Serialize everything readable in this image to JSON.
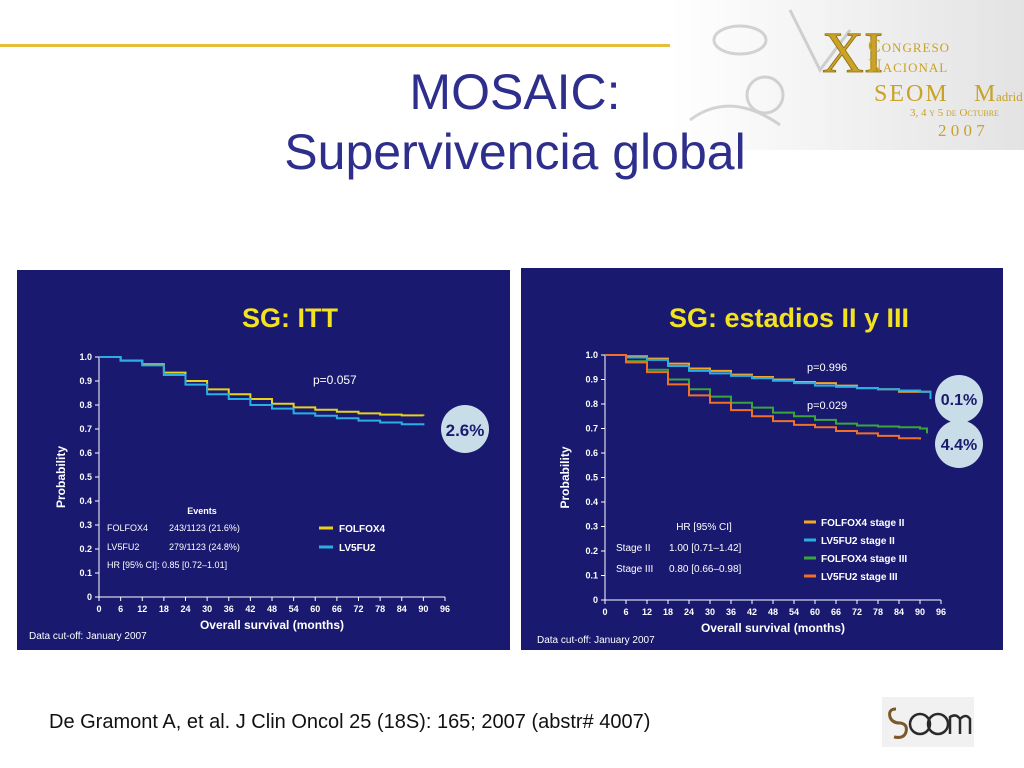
{
  "slide": {
    "title_line1": "MOSAIC:",
    "title_line2": "Supervivencia global",
    "citation": "De Gramont A, et al. J Clin Oncol 25 (18S): 165; 2007 (abstr# 4007)",
    "accent_color": "#e5bf3a",
    "title_color": "#2e2e8c",
    "panel_color": "#191970"
  },
  "congress_logo": {
    "roman_numeral": "XI",
    "line1": "Congreso",
    "line2": "Nacional",
    "org": "SEOM",
    "city": "adrid",
    "dates": "3, 4 y 5 de Octubre",
    "year": "2 0 0 7"
  },
  "badge_logo": {
    "icon": "seom-logo-icon"
  },
  "chart_data": [
    {
      "type": "line",
      "title": "SG: ITT",
      "xlabel": "Overall survival (months)",
      "ylabel": "Probability",
      "xlim": [
        0,
        96
      ],
      "ylim": [
        0,
        1
      ],
      "x_ticks": [
        "0",
        "6",
        "12",
        "18",
        "24",
        "30",
        "36",
        "42",
        "48",
        "54",
        "60",
        "66",
        "72",
        "78",
        "84",
        "90",
        "96"
      ],
      "y_ticks": [
        "0",
        "0.1",
        "0.2",
        "0.3",
        "0.4",
        "0.5",
        "0.6",
        "0.7",
        "0.8",
        "0.9",
        "1.0"
      ],
      "series": [
        {
          "name": "FOLFOX4",
          "color": "#e8d21a",
          "points": [
            [
              0,
              1.0
            ],
            [
              6,
              0.985
            ],
            [
              12,
              0.97
            ],
            [
              18,
              0.935
            ],
            [
              24,
              0.9
            ],
            [
              30,
              0.865
            ],
            [
              36,
              0.845
            ],
            [
              42,
              0.825
            ],
            [
              48,
              0.805
            ],
            [
              54,
              0.79
            ],
            [
              60,
              0.78
            ],
            [
              66,
              0.772
            ],
            [
              72,
              0.765
            ],
            [
              78,
              0.76
            ],
            [
              84,
              0.757
            ],
            [
              90,
              0.755
            ]
          ]
        },
        {
          "name": "LV5FU2",
          "color": "#2aaee4",
          "points": [
            [
              0,
              1.0
            ],
            [
              6,
              0.985
            ],
            [
              12,
              0.965
            ],
            [
              18,
              0.925
            ],
            [
              24,
              0.885
            ],
            [
              30,
              0.845
            ],
            [
              36,
              0.825
            ],
            [
              42,
              0.8
            ],
            [
              48,
              0.785
            ],
            [
              54,
              0.765
            ],
            [
              60,
              0.755
            ],
            [
              66,
              0.745
            ],
            [
              72,
              0.735
            ],
            [
              78,
              0.727
            ],
            [
              84,
              0.72
            ],
            [
              90,
              0.715
            ]
          ]
        }
      ],
      "annotations": [
        {
          "text": "p=0.057"
        },
        {
          "text": "2.6%",
          "style": "bubble"
        },
        {
          "text": "Data cut-off: January 2007"
        }
      ],
      "events_table": {
        "title": "Events",
        "rows": [
          [
            "FOLFOX4",
            "243/1123 (21.6%)"
          ],
          [
            "LV5FU2",
            "279/1123 (24.8%)"
          ]
        ],
        "hr": "HR [95% CI]: 0.85 [0.72–1.01]"
      },
      "legend_placement": "bottom-right",
      "grid": false
    },
    {
      "type": "line",
      "title": "SG: estadios II y III",
      "xlabel": "Overall survival (months)",
      "ylabel": "Probability",
      "xlim": [
        0,
        96
      ],
      "ylim": [
        0,
        1
      ],
      "x_ticks": [
        "0",
        "6",
        "12",
        "18",
        "24",
        "30",
        "36",
        "42",
        "48",
        "54",
        "60",
        "66",
        "72",
        "78",
        "84",
        "90",
        "96"
      ],
      "y_ticks": [
        "0",
        "0.1",
        "0.2",
        "0.3",
        "0.4",
        "0.5",
        "0.6",
        "0.7",
        "0.8",
        "0.9",
        "1.0"
      ],
      "series": [
        {
          "name": "FOLFOX4 stage II",
          "color": "#f5a623",
          "points": [
            [
              0,
              1.0
            ],
            [
              6,
              0.995
            ],
            [
              12,
              0.985
            ],
            [
              18,
              0.965
            ],
            [
              24,
              0.945
            ],
            [
              30,
              0.935
            ],
            [
              36,
              0.92
            ],
            [
              42,
              0.91
            ],
            [
              48,
              0.9
            ],
            [
              54,
              0.89
            ],
            [
              60,
              0.885
            ],
            [
              66,
              0.875
            ],
            [
              72,
              0.865
            ],
            [
              78,
              0.86
            ],
            [
              84,
              0.85
            ],
            [
              90,
              0.85
            ],
            [
              93,
              0.84
            ]
          ]
        },
        {
          "name": "LV5FU2 stage II",
          "color": "#2aaee4",
          "points": [
            [
              0,
              1.0
            ],
            [
              6,
              0.99
            ],
            [
              12,
              0.98
            ],
            [
              18,
              0.955
            ],
            [
              24,
              0.935
            ],
            [
              30,
              0.925
            ],
            [
              36,
              0.915
            ],
            [
              42,
              0.905
            ],
            [
              48,
              0.895
            ],
            [
              54,
              0.885
            ],
            [
              60,
              0.875
            ],
            [
              66,
              0.87
            ],
            [
              72,
              0.865
            ],
            [
              78,
              0.86
            ],
            [
              84,
              0.855
            ],
            [
              90,
              0.85
            ],
            [
              93,
              0.82
            ]
          ]
        },
        {
          "name": "FOLFOX4 stage III",
          "color": "#3aa63a",
          "points": [
            [
              0,
              1.0
            ],
            [
              6,
              0.975
            ],
            [
              12,
              0.94
            ],
            [
              18,
              0.9
            ],
            [
              24,
              0.86
            ],
            [
              30,
              0.83
            ],
            [
              36,
              0.805
            ],
            [
              42,
              0.785
            ],
            [
              48,
              0.765
            ],
            [
              54,
              0.75
            ],
            [
              60,
              0.735
            ],
            [
              66,
              0.72
            ],
            [
              72,
              0.712
            ],
            [
              78,
              0.708
            ],
            [
              84,
              0.705
            ],
            [
              90,
              0.7
            ],
            [
              92,
              0.68
            ]
          ]
        },
        {
          "name": "LV5FU2 stage III",
          "color": "#f07028",
          "points": [
            [
              0,
              1.0
            ],
            [
              6,
              0.97
            ],
            [
              12,
              0.93
            ],
            [
              18,
              0.88
            ],
            [
              24,
              0.835
            ],
            [
              30,
              0.805
            ],
            [
              36,
              0.775
            ],
            [
              42,
              0.75
            ],
            [
              48,
              0.73
            ],
            [
              54,
              0.715
            ],
            [
              60,
              0.705
            ],
            [
              66,
              0.69
            ],
            [
              72,
              0.68
            ],
            [
              78,
              0.67
            ],
            [
              84,
              0.66
            ],
            [
              90,
              0.655
            ]
          ]
        }
      ],
      "annotations": [
        {
          "text": "p=0.996"
        },
        {
          "text": "p=0.029"
        },
        {
          "text": "0.1%",
          "style": "bubble"
        },
        {
          "text": "4.4%",
          "style": "bubble"
        },
        {
          "text": "Data cut-off: January 2007"
        }
      ],
      "hr_table": {
        "title": "HR [95% CI]",
        "rows": [
          [
            "Stage II",
            "1.00 [0.71–1.42]"
          ],
          [
            "Stage III",
            "0.80 [0.66–0.98]"
          ]
        ]
      },
      "legend_placement": "bottom-right",
      "grid": false
    }
  ]
}
